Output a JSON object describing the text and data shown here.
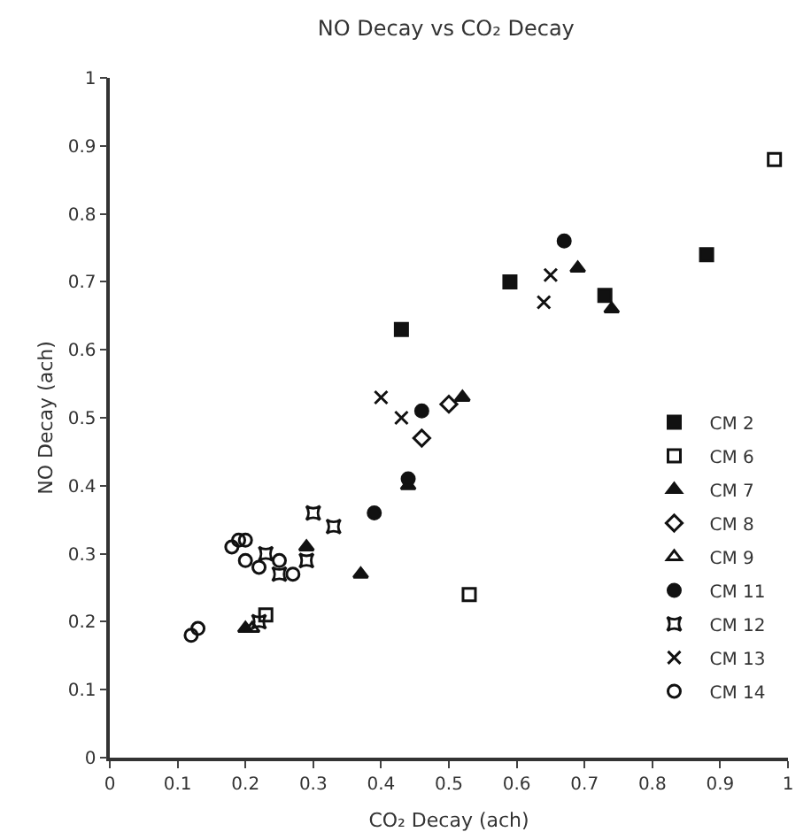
{
  "chart_data": {
    "type": "scatter",
    "title": "NO Decay vs CO₂ Decay",
    "xlabel": "CO₂ Decay (ach)",
    "ylabel": "NO Decay (ach)",
    "xlim": [
      0,
      1
    ],
    "ylim": [
      0,
      1
    ],
    "xticks": [
      0,
      0.1,
      0.2,
      0.3,
      0.4,
      0.5,
      0.6,
      0.7,
      0.8,
      0.9,
      1.0
    ],
    "yticks": [
      0,
      0.1,
      0.2,
      0.3,
      0.4,
      0.5,
      0.6,
      0.7,
      0.8,
      0.9,
      1.0
    ],
    "grid": false,
    "legend": "bottom right",
    "series": [
      {
        "name": "CM 2",
        "color": "#111111",
        "marker": "square",
        "x": [
          0.43,
          0.59,
          0.73,
          0.88
        ],
        "values": [
          0.63,
          0.7,
          0.68,
          0.74
        ]
      },
      {
        "name": "CM 6",
        "color": "#111111",
        "marker": "square-open",
        "x": [
          0.98,
          0.53,
          0.23
        ],
        "values": [
          0.88,
          0.24,
          0.21
        ]
      },
      {
        "name": "CM 7",
        "color": "#111111",
        "marker": "triangle",
        "x": [
          0.69,
          0.74,
          0.52,
          0.29,
          0.37,
          0.44,
          0.2
        ],
        "values": [
          0.72,
          0.66,
          0.53,
          0.31,
          0.27,
          0.4,
          0.19
        ]
      },
      {
        "name": "CM 8",
        "color": "#111111",
        "marker": "diamond-open",
        "x": [
          0.5,
          0.46
        ],
        "values": [
          0.52,
          0.47
        ]
      },
      {
        "name": "CM 9",
        "color": "#111111",
        "marker": "triangle-open",
        "x": [
          0.21
        ],
        "values": [
          0.19
        ]
      },
      {
        "name": "CM 11",
        "color": "#111111",
        "marker": "circle",
        "x": [
          0.67,
          0.39,
          0.46,
          0.44
        ],
        "values": [
          0.76,
          0.36,
          0.51,
          0.41
        ]
      },
      {
        "name": "CM 12",
        "color": "#111111",
        "marker": "star-open",
        "x": [
          0.3,
          0.33,
          0.23,
          0.29,
          0.25,
          0.22
        ],
        "values": [
          0.36,
          0.34,
          0.3,
          0.29,
          0.27,
          0.2
        ]
      },
      {
        "name": "CM 13",
        "color": "#111111",
        "marker": "cross",
        "x": [
          0.65,
          0.64,
          0.4,
          0.43
        ],
        "values": [
          0.71,
          0.67,
          0.53,
          0.5
        ]
      },
      {
        "name": "CM 14",
        "color": "#111111",
        "marker": "circle-open",
        "x": [
          0.12,
          0.13,
          0.18,
          0.19,
          0.2,
          0.2,
          0.22,
          0.25,
          0.27
        ],
        "values": [
          0.18,
          0.19,
          0.31,
          0.32,
          0.32,
          0.29,
          0.28,
          0.29,
          0.27
        ]
      }
    ]
  }
}
